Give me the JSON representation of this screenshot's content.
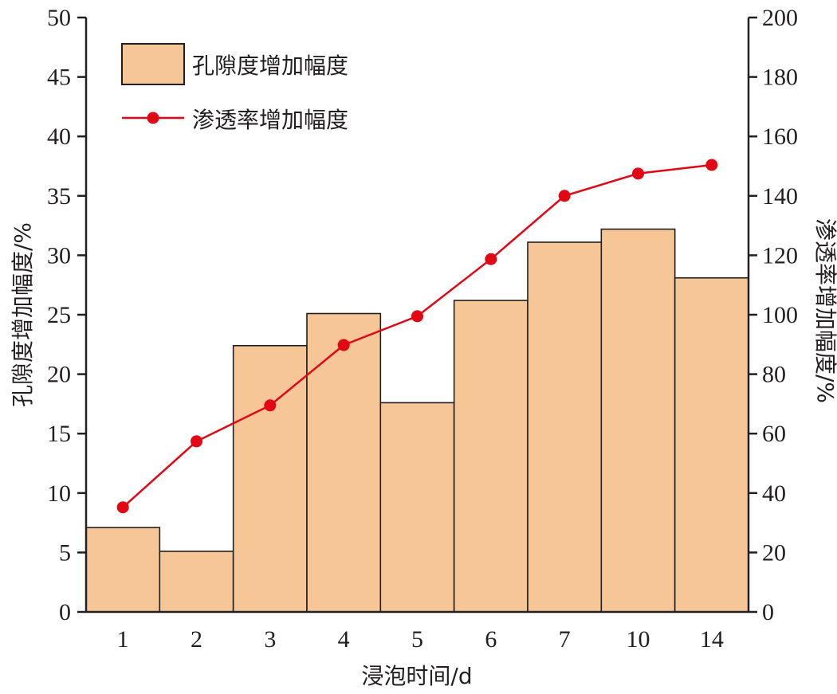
{
  "chart_data": {
    "type": "bar",
    "categories": [
      "1",
      "2",
      "3",
      "4",
      "5",
      "6",
      "7",
      "10",
      "14"
    ],
    "xlabel": "浸泡时间/d",
    "ylabel": "孔隙度增加幅度/%",
    "ylabel_right": "渗透率增加幅度/%",
    "ylim": [
      0,
      50
    ],
    "ylim_right": [
      0,
      200
    ],
    "yticks": [
      "0",
      "5",
      "10",
      "15",
      "20",
      "25",
      "30",
      "35",
      "40",
      "45",
      "50"
    ],
    "yticks_right": [
      "0",
      "20",
      "40",
      "60",
      "80",
      "100",
      "120",
      "140",
      "160",
      "180",
      "200"
    ],
    "series": [
      {
        "name": "孔隙度增加幅度",
        "type": "bar",
        "axis": "left",
        "values": [
          7.1,
          5.1,
          22.4,
          25.1,
          17.6,
          26.2,
          31.1,
          32.2,
          28.1
        ]
      },
      {
        "name": "渗透率增加幅度",
        "type": "line",
        "axis": "right",
        "values": [
          35.2,
          57.4,
          69.5,
          89.8,
          99.5,
          118.7,
          140.0,
          147.5,
          150.4
        ]
      }
    ],
    "legend": "top-left",
    "grid": false,
    "colors": {
      "bar_fill": "#f6c697",
      "bar_stroke": "#231f20",
      "line": "#e30613",
      "axis": "#231f20"
    }
  }
}
